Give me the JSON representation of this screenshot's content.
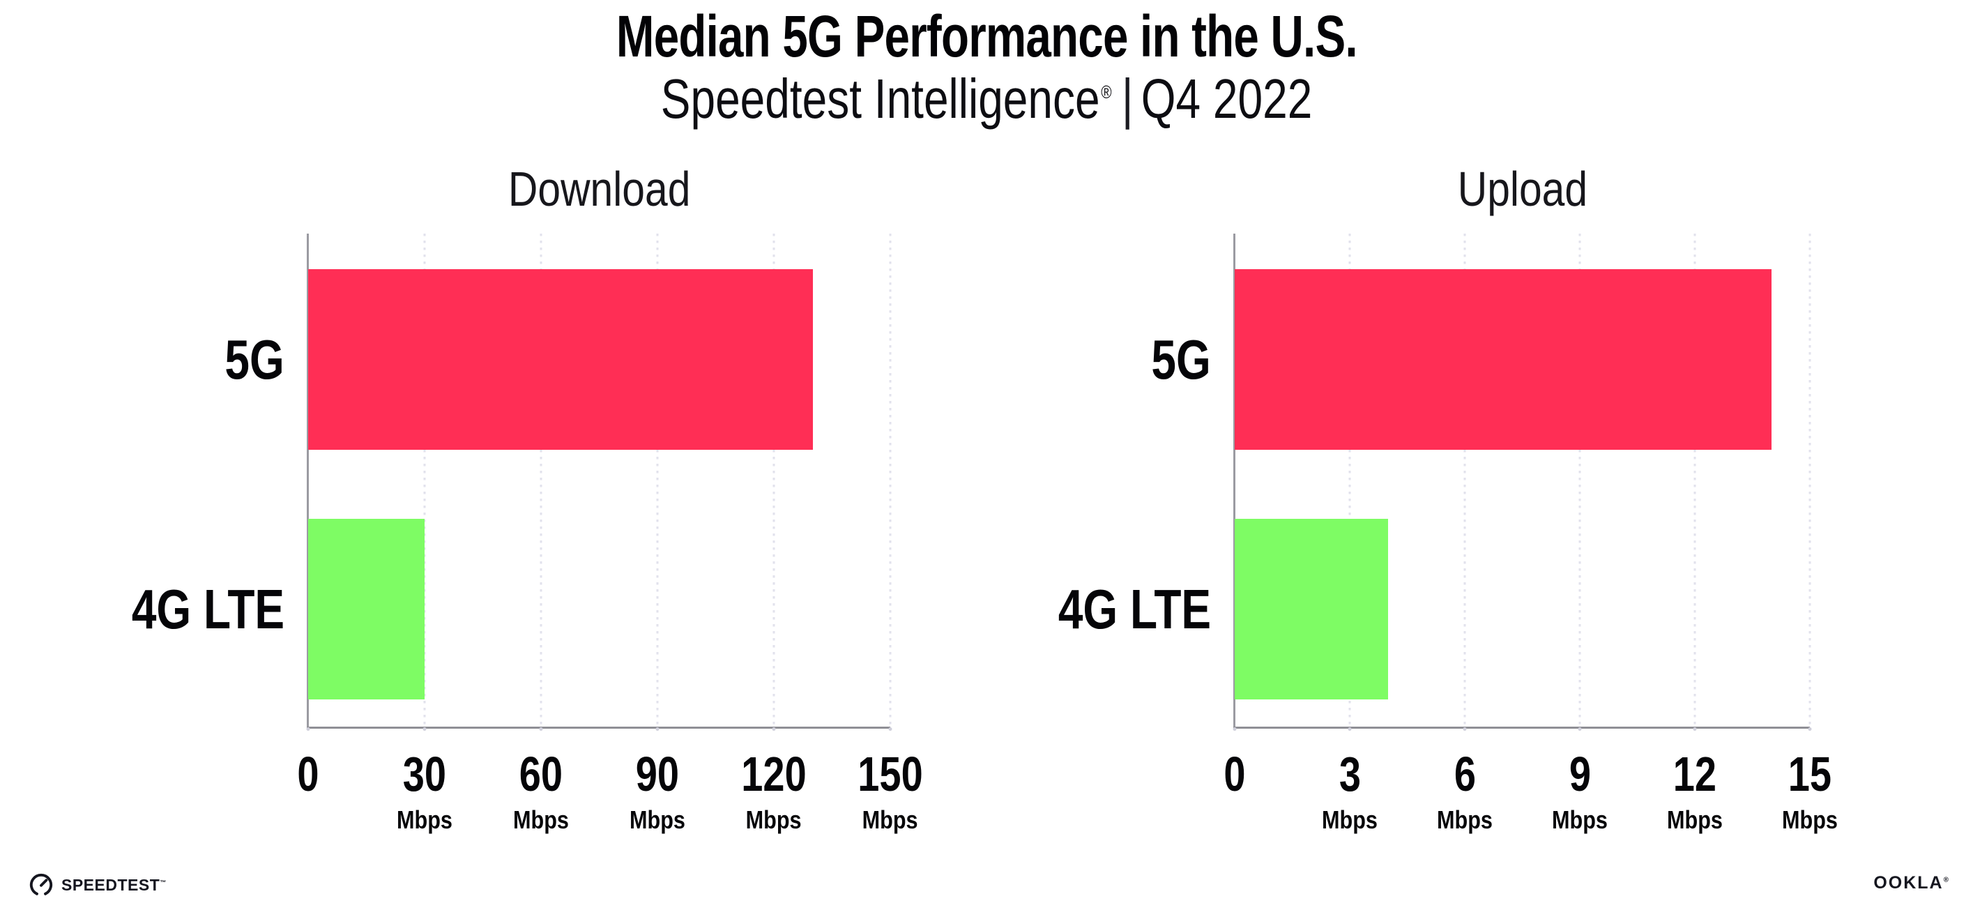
{
  "header": {
    "title": "Median 5G Performance in the U.S.",
    "subtitle": {
      "brand": "Speedtest Intelligence",
      "registered_mark": "®",
      "divider": "|",
      "period": "Q4 2022"
    }
  },
  "colors": {
    "bar_5g": "#ff2e55",
    "bar_4g_lte": "#7efc64",
    "axis": "#8f8f96",
    "grid_dots": "#e2e2ec",
    "text": "#050508"
  },
  "chart_data": [
    {
      "type": "bar",
      "orientation": "horizontal",
      "title": "Download",
      "categories": [
        "5G",
        "4G LTE"
      ],
      "values": [
        130,
        30
      ],
      "unit": "Mbps",
      "series_colors": [
        "#ff2e55",
        "#7efc64"
      ],
      "xlim": [
        0,
        150
      ],
      "ticks": [
        0,
        30,
        60,
        90,
        120,
        150
      ],
      "grid": "dotted-vertical",
      "legend": "none"
    },
    {
      "type": "bar",
      "orientation": "horizontal",
      "title": "Upload",
      "categories": [
        "5G",
        "4G LTE"
      ],
      "values": [
        14,
        4
      ],
      "unit": "Mbps",
      "series_colors": [
        "#ff2e55",
        "#7efc64"
      ],
      "xlim": [
        0,
        15
      ],
      "ticks": [
        0,
        3,
        6,
        9,
        12,
        15
      ],
      "grid": "dotted-vertical",
      "legend": "none"
    }
  ],
  "footer": {
    "speedtest_wordmark": "SPEEDTEST",
    "speedtest_mark": "™",
    "ookla_wordmark": "OOKLA",
    "ookla_mark": "®"
  }
}
